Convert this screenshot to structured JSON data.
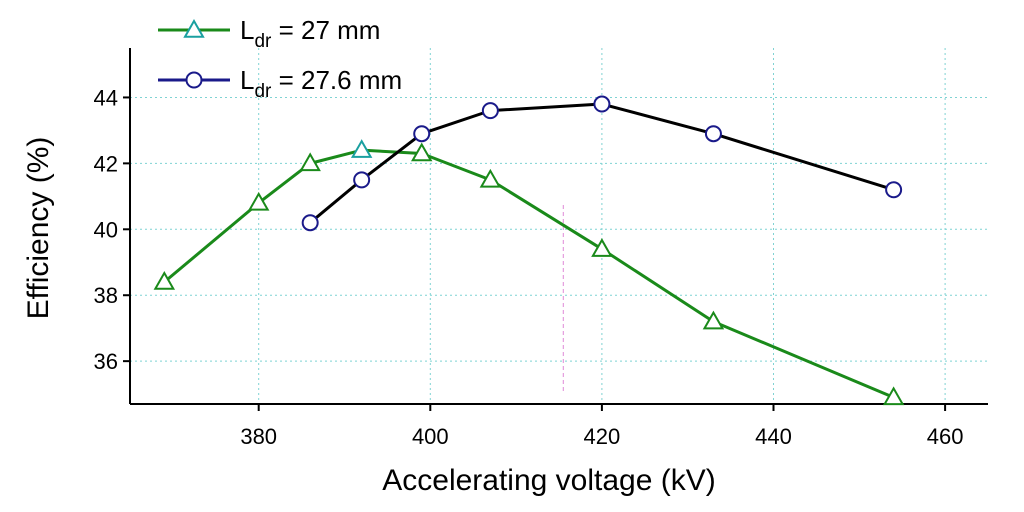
{
  "chart_data": {
    "type": "line",
    "title": "",
    "xlabel": "Accelerating voltage (kV)",
    "ylabel": "Efficiency (%)",
    "xlim": [
      365,
      465
    ],
    "ylim": [
      34.7,
      45.5
    ],
    "xticks": [
      380,
      400,
      420,
      440,
      460
    ],
    "yticks": [
      36,
      38,
      40,
      42,
      44
    ],
    "grid": true,
    "legend_position": "top-left",
    "vertical_marker_x": 415.5,
    "series": [
      {
        "name_main": "L",
        "name_sub": "dr",
        "name_rest": " = 27 mm",
        "marker": "triangle",
        "line_color": "#1a8a1a",
        "marker_color_legend": "#1aa0a0",
        "x": [
          369,
          380,
          386,
          392,
          399,
          407,
          420,
          433,
          454
        ],
        "y": [
          38.4,
          40.8,
          42.0,
          42.4,
          42.3,
          41.5,
          39.4,
          37.2,
          34.9
        ]
      },
      {
        "name_main": "L",
        "name_sub": "dr",
        "name_rest": " = 27.6 mm",
        "marker": "circle",
        "line_color": "#000000",
        "marker_color_legend": "#1a1a8a",
        "x": [
          386,
          392,
          399,
          407,
          420,
          433,
          454
        ],
        "y": [
          40.2,
          41.5,
          42.9,
          43.6,
          43.8,
          42.9,
          41.2
        ]
      }
    ]
  }
}
